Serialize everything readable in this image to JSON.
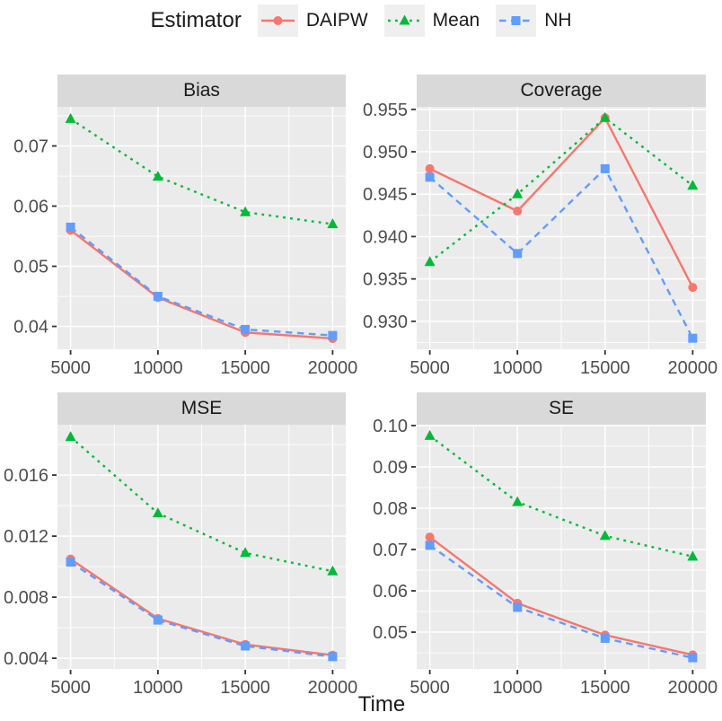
{
  "legend": {
    "title": "Estimator"
  },
  "axis": {
    "x_title": "Time"
  },
  "series_meta": [
    {
      "name": "DAIPW",
      "color": "#F8766D",
      "line": "solid",
      "marker": "circle"
    },
    {
      "name": "Mean",
      "color": "#00BA38",
      "line": "dotted",
      "marker": "triangle"
    },
    {
      "name": "NH",
      "color": "#619CFF",
      "line": "dashed",
      "marker": "square"
    }
  ],
  "theme": {
    "panel_bg": "#EBEBEB",
    "strip_bg": "#D9D9D9",
    "grid": "#FFFFFF",
    "tick": "#333333",
    "tick_text": "#4D4D4D",
    "legend_key_bg": "#EFEFEF"
  },
  "chart_data": [
    {
      "type": "line",
      "title": "Bias",
      "xlabel": "Time",
      "x": [
        5000,
        10000,
        15000,
        20000
      ],
      "xtick_labels": [
        "5000",
        "10000",
        "15000",
        "20000"
      ],
      "xlim": [
        4250,
        20750
      ],
      "ylim": [
        0.0362,
        0.0765
      ],
      "yticks": [
        0.04,
        0.05,
        0.06,
        0.07
      ],
      "ytick_labels": [
        "0.04",
        "0.05",
        "0.06",
        "0.07"
      ],
      "grid": true,
      "legend_position": "top",
      "series": [
        {
          "name": "DAIPW",
          "values": [
            0.056,
            0.0448,
            0.039,
            0.038
          ]
        },
        {
          "name": "Mean",
          "values": [
            0.0745,
            0.0649,
            0.059,
            0.057
          ]
        },
        {
          "name": "NH",
          "values": [
            0.0565,
            0.045,
            0.0395,
            0.0385
          ]
        }
      ]
    },
    {
      "type": "line",
      "title": "Coverage",
      "xlabel": "Time",
      "x": [
        5000,
        10000,
        15000,
        20000
      ],
      "xtick_labels": [
        "5000",
        "10000",
        "15000",
        "20000"
      ],
      "xlim": [
        4250,
        20750
      ],
      "ylim": [
        0.9267,
        0.9553
      ],
      "yticks": [
        0.93,
        0.935,
        0.94,
        0.945,
        0.95,
        0.955
      ],
      "ytick_labels": [
        "0.930",
        "0.935",
        "0.940",
        "0.945",
        "0.950",
        "0.955"
      ],
      "grid": true,
      "legend_position": "top",
      "series": [
        {
          "name": "DAIPW",
          "values": [
            0.948,
            0.943,
            0.954,
            0.934
          ]
        },
        {
          "name": "Mean",
          "values": [
            0.937,
            0.945,
            0.954,
            0.946
          ]
        },
        {
          "name": "NH",
          "values": [
            0.947,
            0.938,
            0.948,
            0.928
          ]
        }
      ]
    },
    {
      "type": "line",
      "title": "MSE",
      "xlabel": "Time",
      "x": [
        5000,
        10000,
        15000,
        20000
      ],
      "xtick_labels": [
        "5000",
        "10000",
        "15000",
        "20000"
      ],
      "xlim": [
        4250,
        20750
      ],
      "ylim": [
        0.0033,
        0.0193
      ],
      "yticks": [
        0.004,
        0.008,
        0.012,
        0.016
      ],
      "ytick_labels": [
        "0.004",
        "0.008",
        "0.012",
        "0.016"
      ],
      "grid": true,
      "legend_position": "top",
      "series": [
        {
          "name": "DAIPW",
          "values": [
            0.0105,
            0.0066,
            0.0049,
            0.0042
          ]
        },
        {
          "name": "Mean",
          "values": [
            0.0185,
            0.0135,
            0.0109,
            0.0097
          ]
        },
        {
          "name": "NH",
          "values": [
            0.0103,
            0.0065,
            0.0048,
            0.0041
          ]
        }
      ]
    },
    {
      "type": "line",
      "title": "SE",
      "xlabel": "Time",
      "x": [
        5000,
        10000,
        15000,
        20000
      ],
      "xtick_labels": [
        "5000",
        "10000",
        "15000",
        "20000"
      ],
      "xlim": [
        4250,
        20750
      ],
      "ylim": [
        0.0411,
        0.1002
      ],
      "yticks": [
        0.05,
        0.06,
        0.07,
        0.08,
        0.09,
        0.1
      ],
      "ytick_labels": [
        "0.05",
        "0.06",
        "0.07",
        "0.08",
        "0.09",
        "0.10"
      ],
      "grid": true,
      "legend_position": "top",
      "series": [
        {
          "name": "DAIPW",
          "values": [
            0.073,
            0.057,
            0.0493,
            0.0445
          ]
        },
        {
          "name": "Mean",
          "values": [
            0.0975,
            0.0815,
            0.0733,
            0.0683
          ]
        },
        {
          "name": "NH",
          "values": [
            0.071,
            0.056,
            0.0485,
            0.0438
          ]
        }
      ]
    }
  ]
}
